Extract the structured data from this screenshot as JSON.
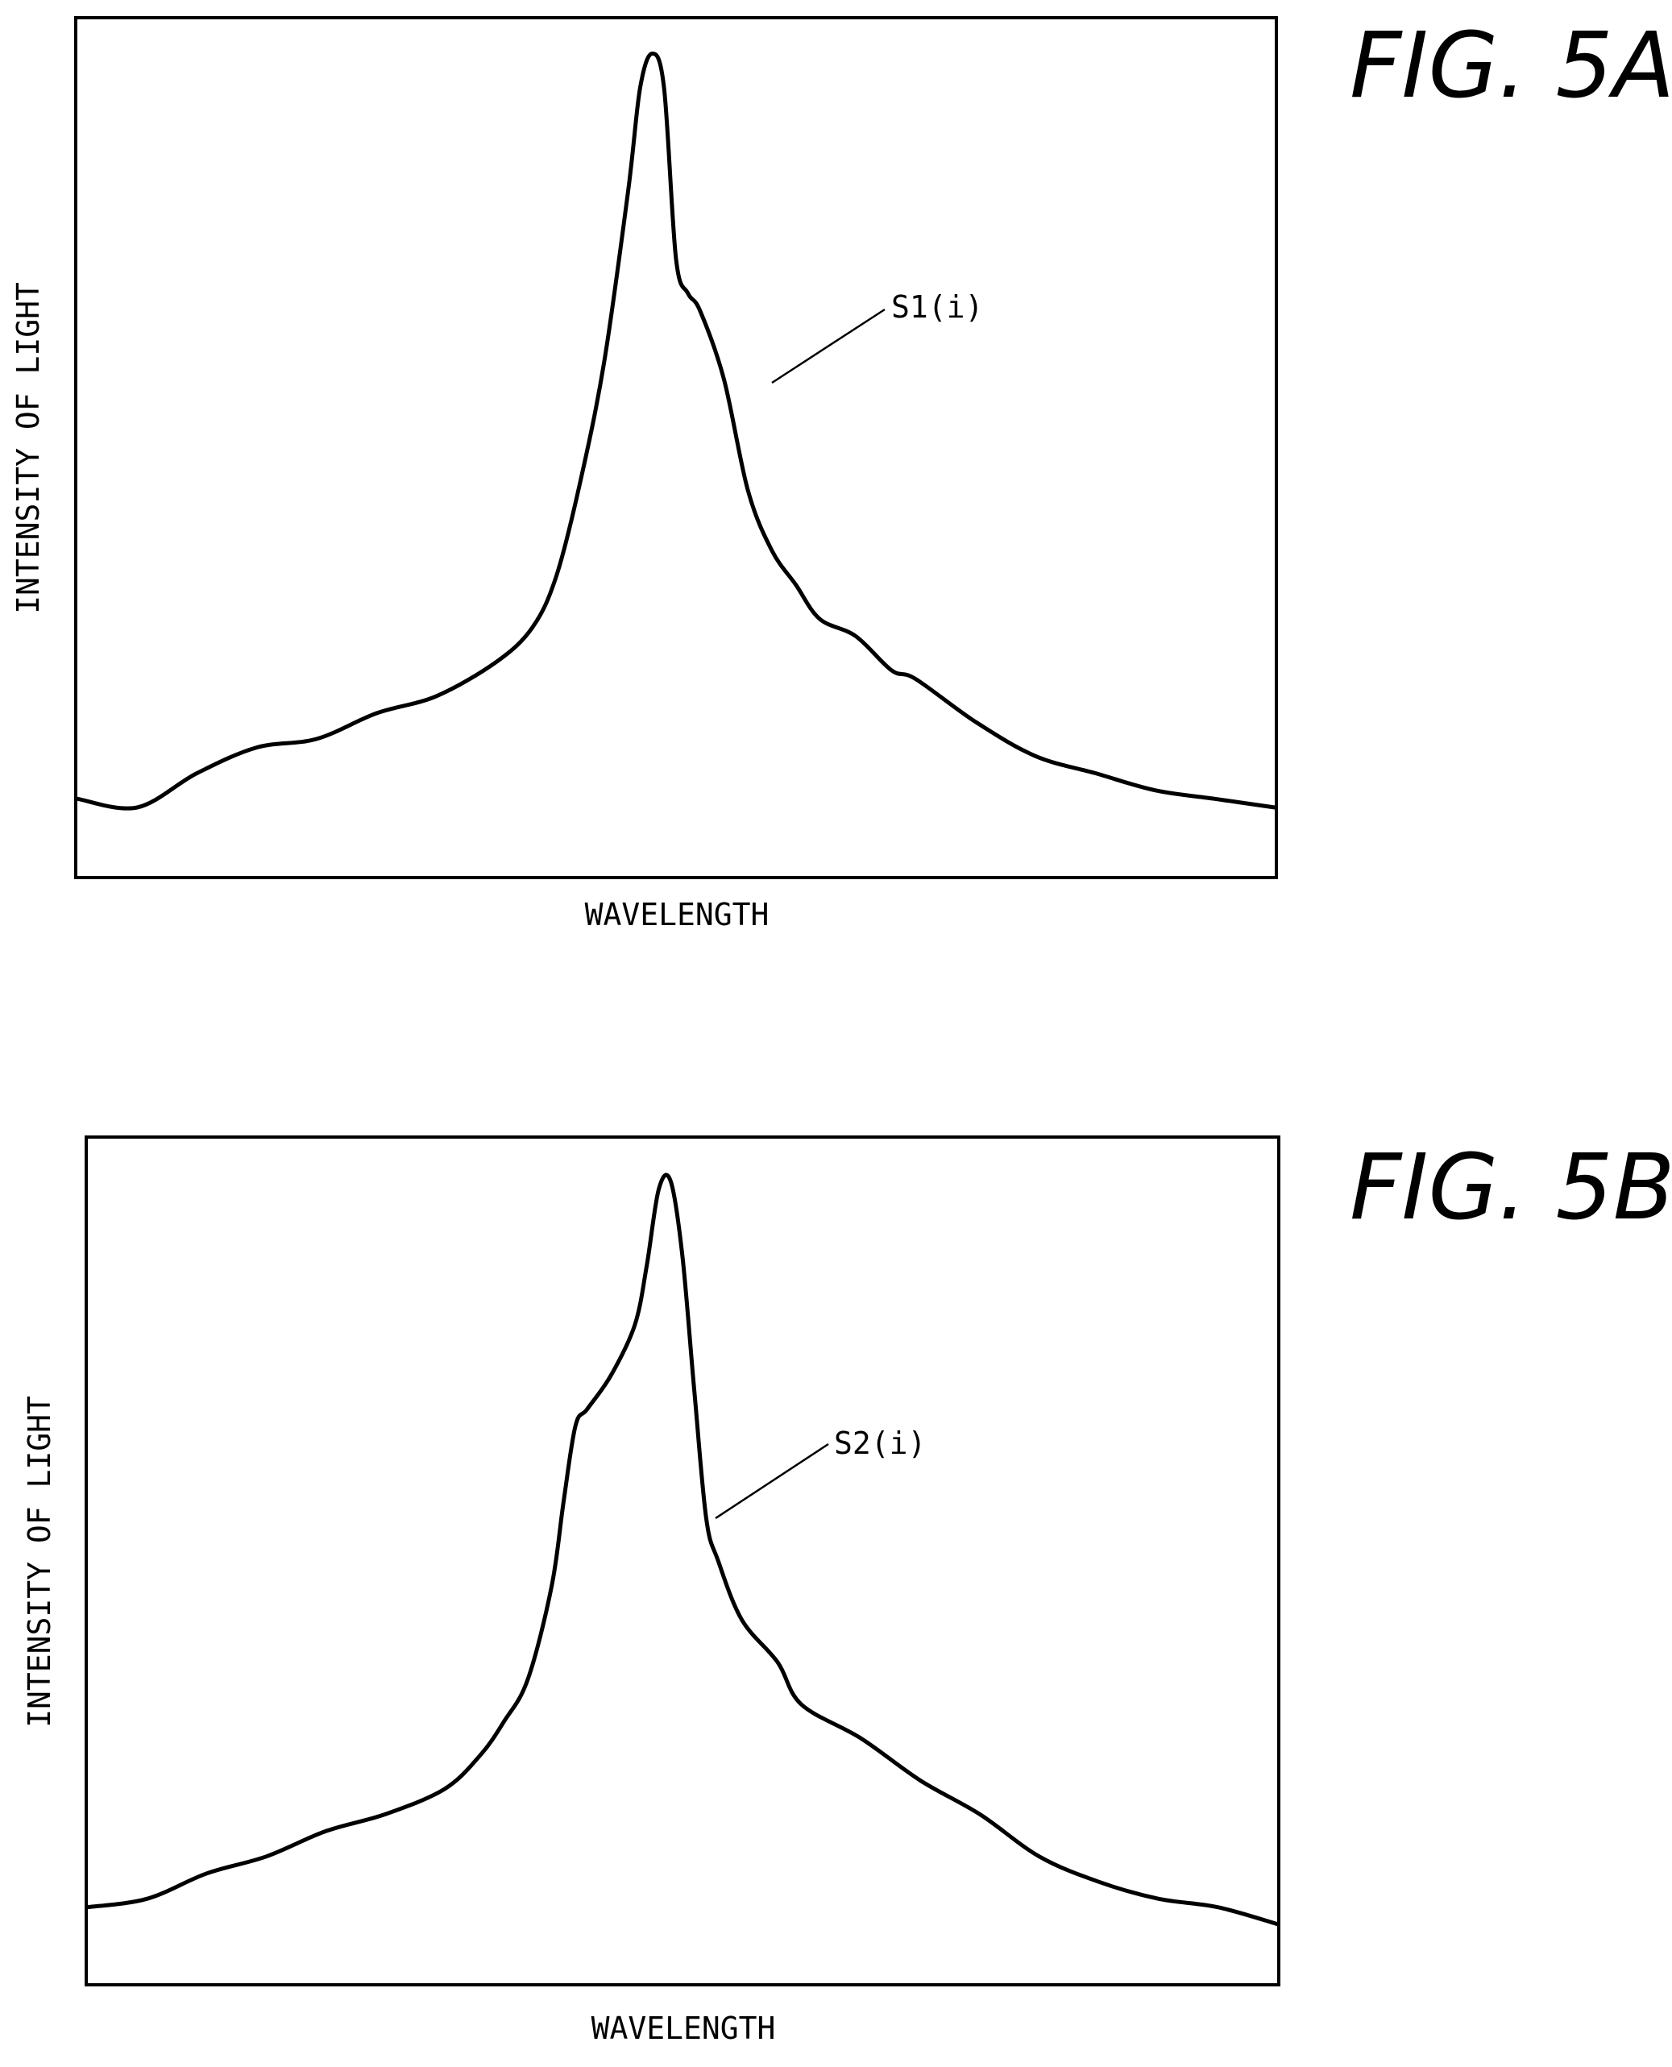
{
  "figures": [
    {
      "fig_label": "FIG. 5A",
      "xlabel": "WAVELENGTH",
      "ylabel": "INTENSITY OF LIGHT",
      "curve_label": "S1(i)"
    },
    {
      "fig_label": "FIG. 5B",
      "xlabel": "WAVELENGTH",
      "ylabel": "INTENSITY OF LIGHT",
      "curve_label": "S2(i)"
    }
  ],
  "chart_data": [
    {
      "type": "line",
      "title": "FIG. 5A",
      "xlabel": "WAVELENGTH",
      "ylabel": "INTENSITY OF LIGHT",
      "xlim": [
        0,
        1
      ],
      "ylim": [
        0,
        1
      ],
      "grid": false,
      "tick_labels": false,
      "series": [
        {
          "name": "S1(i)",
          "x": [
            0.0,
            0.05,
            0.1,
            0.15,
            0.2,
            0.25,
            0.3,
            0.35,
            0.38,
            0.4,
            0.42,
            0.44,
            0.46,
            0.47,
            0.48,
            0.49,
            0.5,
            0.51,
            0.52,
            0.54,
            0.56,
            0.58,
            0.6,
            0.62,
            0.65,
            0.68,
            0.7,
            0.75,
            0.8,
            0.85,
            0.9,
            0.95,
            1.0
          ],
          "y": [
            0.09,
            0.08,
            0.12,
            0.15,
            0.16,
            0.19,
            0.21,
            0.25,
            0.29,
            0.35,
            0.46,
            0.6,
            0.8,
            0.92,
            0.96,
            0.92,
            0.72,
            0.68,
            0.66,
            0.58,
            0.45,
            0.38,
            0.34,
            0.3,
            0.28,
            0.24,
            0.23,
            0.18,
            0.14,
            0.12,
            0.1,
            0.09,
            0.08
          ]
        }
      ]
    },
    {
      "type": "line",
      "title": "FIG. 5B",
      "xlabel": "WAVELENGTH",
      "ylabel": "INTENSITY OF LIGHT",
      "xlim": [
        0,
        1
      ],
      "ylim": [
        0,
        1
      ],
      "grid": false,
      "tick_labels": false,
      "series": [
        {
          "name": "S2(i)",
          "x": [
            0.0,
            0.05,
            0.1,
            0.15,
            0.2,
            0.25,
            0.3,
            0.33,
            0.35,
            0.37,
            0.39,
            0.4,
            0.41,
            0.42,
            0.44,
            0.46,
            0.47,
            0.48,
            0.49,
            0.5,
            0.51,
            0.52,
            0.53,
            0.55,
            0.58,
            0.6,
            0.65,
            0.7,
            0.75,
            0.8,
            0.85,
            0.9,
            0.95,
            1.0
          ],
          "y": [
            0.09,
            0.1,
            0.13,
            0.15,
            0.18,
            0.2,
            0.23,
            0.27,
            0.31,
            0.36,
            0.47,
            0.57,
            0.66,
            0.68,
            0.72,
            0.78,
            0.85,
            0.94,
            0.95,
            0.86,
            0.7,
            0.55,
            0.5,
            0.43,
            0.38,
            0.33,
            0.29,
            0.24,
            0.2,
            0.15,
            0.12,
            0.1,
            0.09,
            0.07
          ]
        }
      ]
    }
  ]
}
